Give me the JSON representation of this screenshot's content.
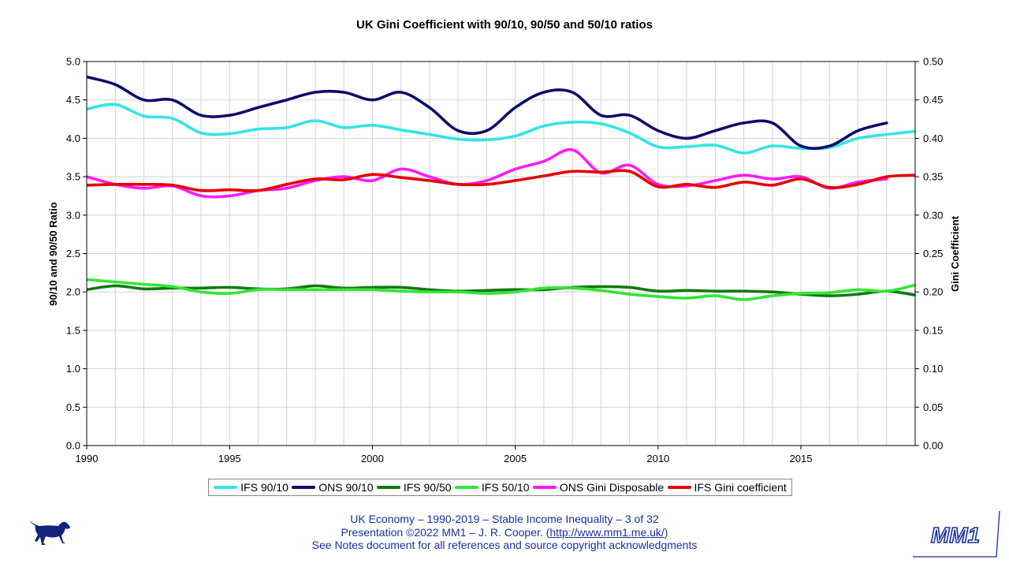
{
  "chart_data": {
    "type": "line",
    "title": "UK Gini Coefficient with 90/10, 90/50 and 50/10 ratios",
    "xlabel": "",
    "ylabel": "90/10 and 90/50 Ratio",
    "y2label": "Gini Coefficient",
    "xlim": [
      1990,
      2019
    ],
    "ylim": [
      0,
      5
    ],
    "y2lim": [
      0,
      0.5
    ],
    "x_ticks": [
      "1990",
      "1995",
      "2000",
      "2005",
      "2010",
      "2015"
    ],
    "y_ticks": [
      "0.0",
      "0.5",
      "1.0",
      "1.5",
      "2.0",
      "2.5",
      "3.0",
      "3.5",
      "4.0",
      "4.5",
      "5.0"
    ],
    "y2_ticks": [
      "0.00",
      "0.05",
      "0.10",
      "0.15",
      "0.20",
      "0.25",
      "0.30",
      "0.35",
      "0.40",
      "0.45",
      "0.50"
    ],
    "grid": true,
    "legend_position": "bottom",
    "series": [
      {
        "name": "IFS 90/10",
        "color": "#33e5e5",
        "axis": "left",
        "x": [
          1990,
          1991,
          1992,
          1993,
          1994,
          1995,
          1996,
          1997,
          1998,
          1999,
          2000,
          2001,
          2002,
          2003,
          2004,
          2005,
          2006,
          2007,
          2008,
          2009,
          2010,
          2011,
          2012,
          2013,
          2014,
          2015,
          2016,
          2017,
          2018,
          2019
        ],
        "values": [
          4.38,
          4.44,
          4.29,
          4.26,
          4.07,
          4.06,
          4.12,
          4.14,
          4.23,
          4.14,
          4.17,
          4.11,
          4.05,
          3.99,
          3.98,
          4.03,
          4.16,
          4.21,
          4.19,
          4.07,
          3.89,
          3.89,
          3.91,
          3.81,
          3.9,
          3.87,
          3.88,
          4.0,
          4.05,
          4.09
        ]
      },
      {
        "name": "ONS 90/10",
        "color": "#0d0d6b",
        "axis": "left",
        "x": [
          1990,
          1991,
          1992,
          1993,
          1994,
          1995,
          1996,
          1997,
          1998,
          1999,
          2000,
          2001,
          2002,
          2003,
          2004,
          2005,
          2006,
          2007,
          2008,
          2009,
          2010,
          2011,
          2012,
          2013,
          2014,
          2015,
          2016,
          2017,
          2018
        ],
        "values": [
          4.8,
          4.7,
          4.5,
          4.5,
          4.3,
          4.3,
          4.4,
          4.5,
          4.6,
          4.6,
          4.5,
          4.6,
          4.4,
          4.1,
          4.1,
          4.4,
          4.6,
          4.6,
          4.3,
          4.3,
          4.1,
          4.0,
          4.1,
          4.2,
          4.2,
          3.9,
          3.9,
          4.1,
          4.2
        ]
      },
      {
        "name": "IFS 90/50",
        "color": "#117a11",
        "axis": "left",
        "x": [
          1990,
          1991,
          1992,
          1993,
          1994,
          1995,
          1996,
          1997,
          1998,
          1999,
          2000,
          2001,
          2002,
          2003,
          2004,
          2005,
          2006,
          2007,
          2008,
          2009,
          2010,
          2011,
          2012,
          2013,
          2014,
          2015,
          2016,
          2017,
          2018,
          2019
        ],
        "values": [
          2.03,
          2.08,
          2.04,
          2.05,
          2.05,
          2.06,
          2.04,
          2.04,
          2.08,
          2.05,
          2.06,
          2.06,
          2.03,
          2.01,
          2.02,
          2.03,
          2.03,
          2.06,
          2.07,
          2.06,
          2.01,
          2.02,
          2.01,
          2.01,
          2.0,
          1.97,
          1.95,
          1.97,
          2.01,
          1.96
        ]
      },
      {
        "name": "IFS 50/10",
        "color": "#33e633",
        "axis": "left",
        "x": [
          1990,
          1991,
          1992,
          1993,
          1994,
          1995,
          1996,
          1997,
          1998,
          1999,
          2000,
          2001,
          2002,
          2003,
          2004,
          2005,
          2006,
          2007,
          2008,
          2009,
          2010,
          2011,
          2012,
          2013,
          2014,
          2015,
          2016,
          2017,
          2018,
          2019
        ],
        "values": [
          2.16,
          2.13,
          2.1,
          2.07,
          2.0,
          1.98,
          2.03,
          2.03,
          2.03,
          2.03,
          2.03,
          2.01,
          2.0,
          2.0,
          1.98,
          2.0,
          2.05,
          2.05,
          2.02,
          1.97,
          1.94,
          1.92,
          1.95,
          1.9,
          1.95,
          1.98,
          1.99,
          2.03,
          2.01,
          2.09
        ]
      },
      {
        "name": "ONS Gini Disposable",
        "color": "#ff1aff",
        "axis": "right",
        "x": [
          1990,
          1991,
          1992,
          1993,
          1994,
          1995,
          1996,
          1997,
          1998,
          1999,
          2000,
          2001,
          2002,
          2003,
          2004,
          2005,
          2006,
          2007,
          2008,
          2009,
          2010,
          2011,
          2012,
          2013,
          2014,
          2015,
          2016,
          2017,
          2018
        ],
        "values": [
          0.35,
          0.34,
          0.335,
          0.338,
          0.325,
          0.325,
          0.332,
          0.335,
          0.345,
          0.35,
          0.345,
          0.36,
          0.35,
          0.34,
          0.345,
          0.36,
          0.37,
          0.385,
          0.355,
          0.365,
          0.34,
          0.338,
          0.345,
          0.352,
          0.347,
          0.35,
          0.335,
          0.343,
          0.347
        ]
      },
      {
        "name": "IFS Gini coefficient",
        "color": "#e60000",
        "axis": "right",
        "x": [
          1990,
          1991,
          1992,
          1993,
          1994,
          1995,
          1996,
          1997,
          1998,
          1999,
          2000,
          2001,
          2002,
          2003,
          2004,
          2005,
          2006,
          2007,
          2008,
          2009,
          2010,
          2011,
          2012,
          2013,
          2014,
          2015,
          2016,
          2017,
          2018,
          2019
        ],
        "values": [
          0.339,
          0.34,
          0.34,
          0.339,
          0.332,
          0.333,
          0.332,
          0.34,
          0.347,
          0.346,
          0.353,
          0.349,
          0.345,
          0.34,
          0.34,
          0.345,
          0.351,
          0.357,
          0.356,
          0.357,
          0.337,
          0.34,
          0.336,
          0.343,
          0.339,
          0.347,
          0.336,
          0.34,
          0.35,
          0.352
        ]
      }
    ]
  },
  "footer": {
    "line1": "UK Economy – 1990-2019 – Stable Income Inequality – 3 of 32",
    "line2_prefix": "Presentation ©2022 MM1 – J. R. Cooper. (",
    "link": "http://www.mm1.me.uk/",
    "line2_suffix": ")",
    "line3": "See Notes document for all references and source copyright acknowledgments"
  },
  "logo": {
    "text": "MM1",
    "color": "#1a2f9c"
  },
  "dog": {
    "color": "#14237a"
  }
}
